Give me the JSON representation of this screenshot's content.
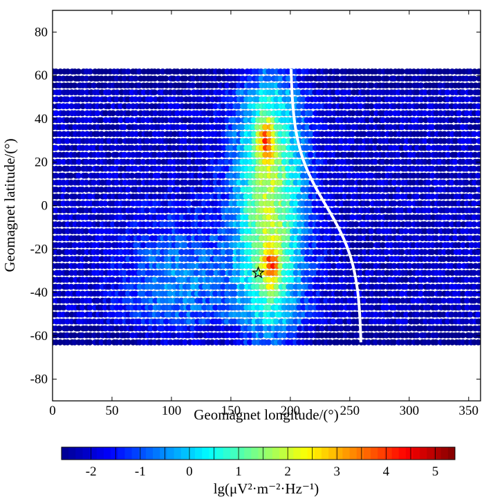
{
  "chart_data": {
    "type": "heatmap",
    "title": "",
    "xlabel": "Geomagnet longitude/(°)",
    "ylabel": "Geomagnet latitude/(°)",
    "xlim": [
      0,
      360
    ],
    "ylim": [
      -90,
      90
    ],
    "xticks": [
      "0",
      "50",
      "100",
      "150",
      "200",
      "250",
      "300",
      "350"
    ],
    "yticks": [
      "80",
      "60",
      "40",
      "20",
      "0",
      "-20",
      "-40",
      "-60",
      "-80"
    ],
    "data_extent": {
      "lon": [
        0,
        360
      ],
      "lat": [
        -63,
        63
      ]
    },
    "hotspots": [
      {
        "lon": 180,
        "lat": 30,
        "level": 4.2
      },
      {
        "lon": 185,
        "lat": -28,
        "level": 4.3
      }
    ],
    "epicenter_marker": {
      "lon": 173,
      "lat": -31,
      "symbol": "star"
    },
    "colorbar": {
      "label": "lg(μV²·m⁻²·Hz⁻¹)",
      "range": [
        -2.6,
        5.4
      ],
      "ticks": [
        "-2",
        "-1",
        "0",
        "1",
        "2",
        "3",
        "4",
        "5"
      ],
      "colormap": [
        "#00008f",
        "#0000ff",
        "#0080ff",
        "#00ffff",
        "#80ff80",
        "#ffff00",
        "#ff8000",
        "#ff0000",
        "#800000"
      ]
    }
  }
}
